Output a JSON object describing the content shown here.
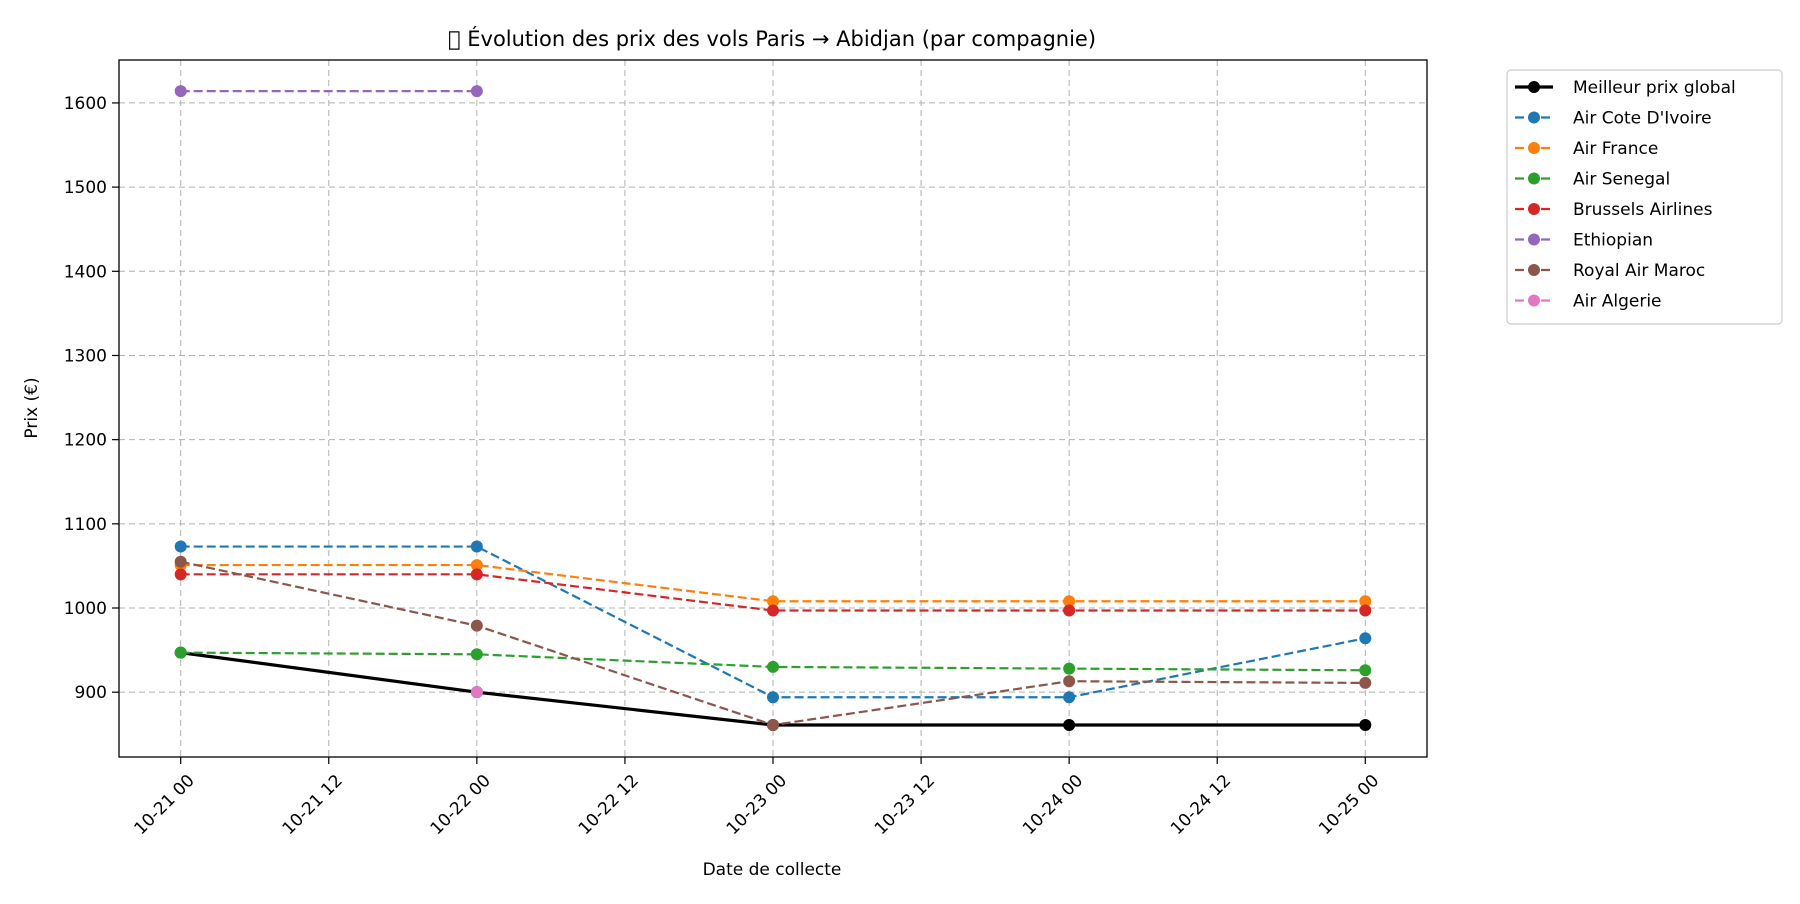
{
  "chart_data": {
    "type": "line",
    "title": "􏰀 Évolution des prix des vols Paris → Abidjan (par compagnie)",
    "xlabel": "Date de collecte",
    "ylabel": "Prix (€)",
    "x": [
      "10-21 00",
      "10-22 00",
      "10-23 00",
      "10-24 00",
      "10-25 00"
    ],
    "x_ticks": [
      "10-21 00",
      "10-21 12",
      "10-22 00",
      "10-22 12",
      "10-23 00",
      "10-23 12",
      "10-24 00",
      "10-24 12",
      "10-25 00"
    ],
    "x_range": [
      "10-20 19:00",
      "10-25 05:00"
    ],
    "ylim": [
      823,
      1651
    ],
    "y_ticks": [
      900,
      1000,
      1100,
      1200,
      1300,
      1400,
      1500,
      1600
    ],
    "grid": true,
    "legend_position": "outside-top-right",
    "series": [
      {
        "name": "Meilleur prix global",
        "color": "#000000",
        "style": "solid",
        "values": [
          947,
          900,
          861,
          861,
          861
        ]
      },
      {
        "name": "Air Cote D'Ivoire",
        "color": "#1f77b4",
        "style": "dashed",
        "values": [
          1073,
          1073,
          894,
          894,
          964
        ]
      },
      {
        "name": "Air France",
        "color": "#ff7f0e",
        "style": "dashed",
        "values": [
          1051,
          1051,
          1008,
          1008,
          1008
        ]
      },
      {
        "name": "Air Senegal",
        "color": "#2ca02c",
        "style": "dashed",
        "values": [
          947,
          945,
          930,
          928,
          926
        ]
      },
      {
        "name": "Brussels Airlines",
        "color": "#d62728",
        "style": "dashed",
        "values": [
          1040,
          1040,
          997,
          997,
          997
        ]
      },
      {
        "name": "Ethiopian",
        "color": "#9467bd",
        "style": "dashed",
        "values": [
          1614,
          1614,
          null,
          null,
          null
        ]
      },
      {
        "name": "Royal Air Maroc",
        "color": "#8c564b",
        "style": "dashed",
        "values": [
          1055,
          979,
          861,
          913,
          911
        ]
      },
      {
        "name": "Air Algerie",
        "color": "#e377c2",
        "style": "dashed",
        "values": [
          null,
          900,
          null,
          null,
          null
        ]
      }
    ]
  }
}
